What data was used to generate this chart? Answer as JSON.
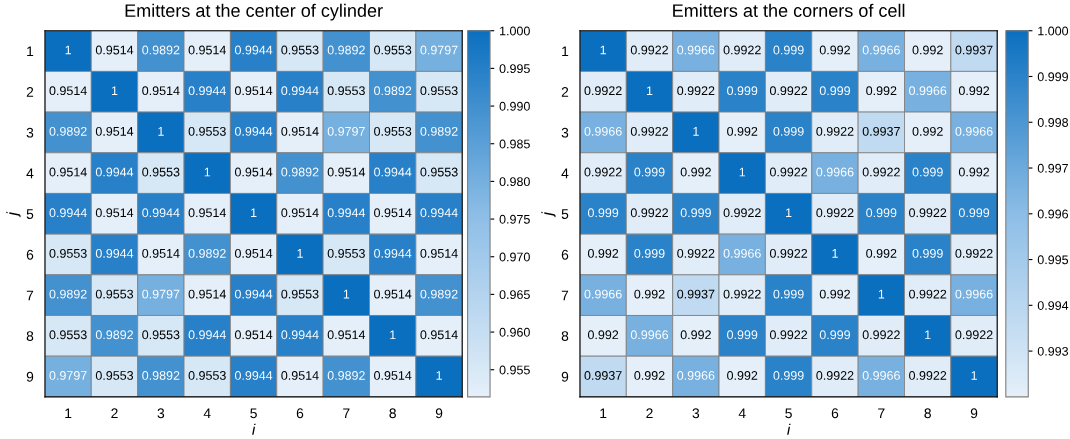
{
  "chart_data": [
    {
      "type": "heatmap",
      "title": "Emitters at the center of cylinder",
      "xlabel": "i",
      "ylabel": "j",
      "categories": [
        "1",
        "2",
        "3",
        "4",
        "5",
        "6",
        "7",
        "8",
        "9"
      ],
      "y_categories": [
        "1",
        "2",
        "3",
        "4",
        "5",
        "6",
        "7",
        "8",
        "9"
      ],
      "cells": [
        [
          1,
          0.9514,
          0.9892,
          0.9514,
          0.9944,
          0.9553,
          0.9892,
          0.9553,
          0.9797
        ],
        [
          0.9514,
          1,
          0.9514,
          0.9944,
          0.9514,
          0.9944,
          0.9553,
          0.9892,
          0.9553
        ],
        [
          0.9892,
          0.9514,
          1,
          0.9553,
          0.9944,
          0.9514,
          0.9797,
          0.9553,
          0.9892
        ],
        [
          0.9514,
          0.9944,
          0.9553,
          1,
          0.9514,
          0.9892,
          0.9514,
          0.9944,
          0.9553
        ],
        [
          0.9944,
          0.9514,
          0.9944,
          0.9514,
          1,
          0.9514,
          0.9944,
          0.9514,
          0.9944
        ],
        [
          0.9553,
          0.9944,
          0.9514,
          0.9892,
          0.9514,
          1,
          0.9553,
          0.9944,
          0.9514
        ],
        [
          0.9892,
          0.9553,
          0.9797,
          0.9514,
          0.9944,
          0.9553,
          1,
          0.9514,
          0.9892
        ],
        [
          0.9553,
          0.9892,
          0.9553,
          0.9944,
          0.9514,
          0.9944,
          0.9514,
          1,
          0.9514
        ],
        [
          0.9797,
          0.9553,
          0.9892,
          0.9553,
          0.9944,
          0.9514,
          0.9892,
          0.9514,
          1
        ]
      ],
      "data_labels": true,
      "clim": [
        0.9514,
        1
      ],
      "cticks": [
        0.955,
        {
          "value": 0.96,
          "label": "0.960"
        },
        0.965,
        {
          "value": 0.97,
          "label": "0.970"
        },
        0.975,
        {
          "value": 0.98,
          "label": "0.980"
        },
        0.985,
        {
          "value": 0.99,
          "label": "0.990"
        },
        0.995,
        {
          "value": 1,
          "label": "1.000"
        }
      ]
    },
    {
      "type": "heatmap",
      "title": "Emitters at the corners of cell",
      "xlabel": "i",
      "ylabel": "j",
      "categories": [
        "1",
        "2",
        "3",
        "4",
        "5",
        "6",
        "7",
        "8",
        "9"
      ],
      "y_categories": [
        "1",
        "2",
        "3",
        "4",
        "5",
        "6",
        "7",
        "8",
        "9"
      ],
      "cells": [
        [
          1,
          0.9922,
          0.9966,
          0.9922,
          0.999,
          0.992,
          0.9966,
          0.992,
          0.9937
        ],
        [
          0.9922,
          1,
          0.9922,
          0.999,
          0.9922,
          0.999,
          0.992,
          0.9966,
          0.992
        ],
        [
          0.9966,
          0.9922,
          1,
          0.992,
          0.999,
          0.9922,
          0.9937,
          0.992,
          0.9966
        ],
        [
          0.9922,
          0.999,
          0.992,
          1,
          0.9922,
          0.9966,
          0.9922,
          0.999,
          0.992
        ],
        [
          0.999,
          0.9922,
          0.999,
          0.9922,
          1,
          0.9922,
          0.999,
          0.9922,
          0.999
        ],
        [
          0.992,
          0.999,
          0.9922,
          0.9966,
          0.9922,
          1,
          0.992,
          0.999,
          0.9922
        ],
        [
          0.9966,
          0.992,
          0.9937,
          0.9922,
          0.999,
          0.992,
          1,
          0.9922,
          0.9966
        ],
        [
          0.992,
          0.9966,
          0.992,
          0.999,
          0.9922,
          0.999,
          0.9922,
          1,
          0.9922
        ],
        [
          0.9937,
          0.992,
          0.9966,
          0.992,
          0.999,
          0.9922,
          0.9966,
          0.9922,
          1
        ]
      ],
      "data_labels": true,
      "clim": [
        0.992,
        1
      ],
      "cticks": [
        0.993,
        0.994,
        0.995,
        0.996,
        0.997,
        0.998,
        0.999,
        {
          "value": 1,
          "label": "1.000"
        }
      ]
    }
  ]
}
